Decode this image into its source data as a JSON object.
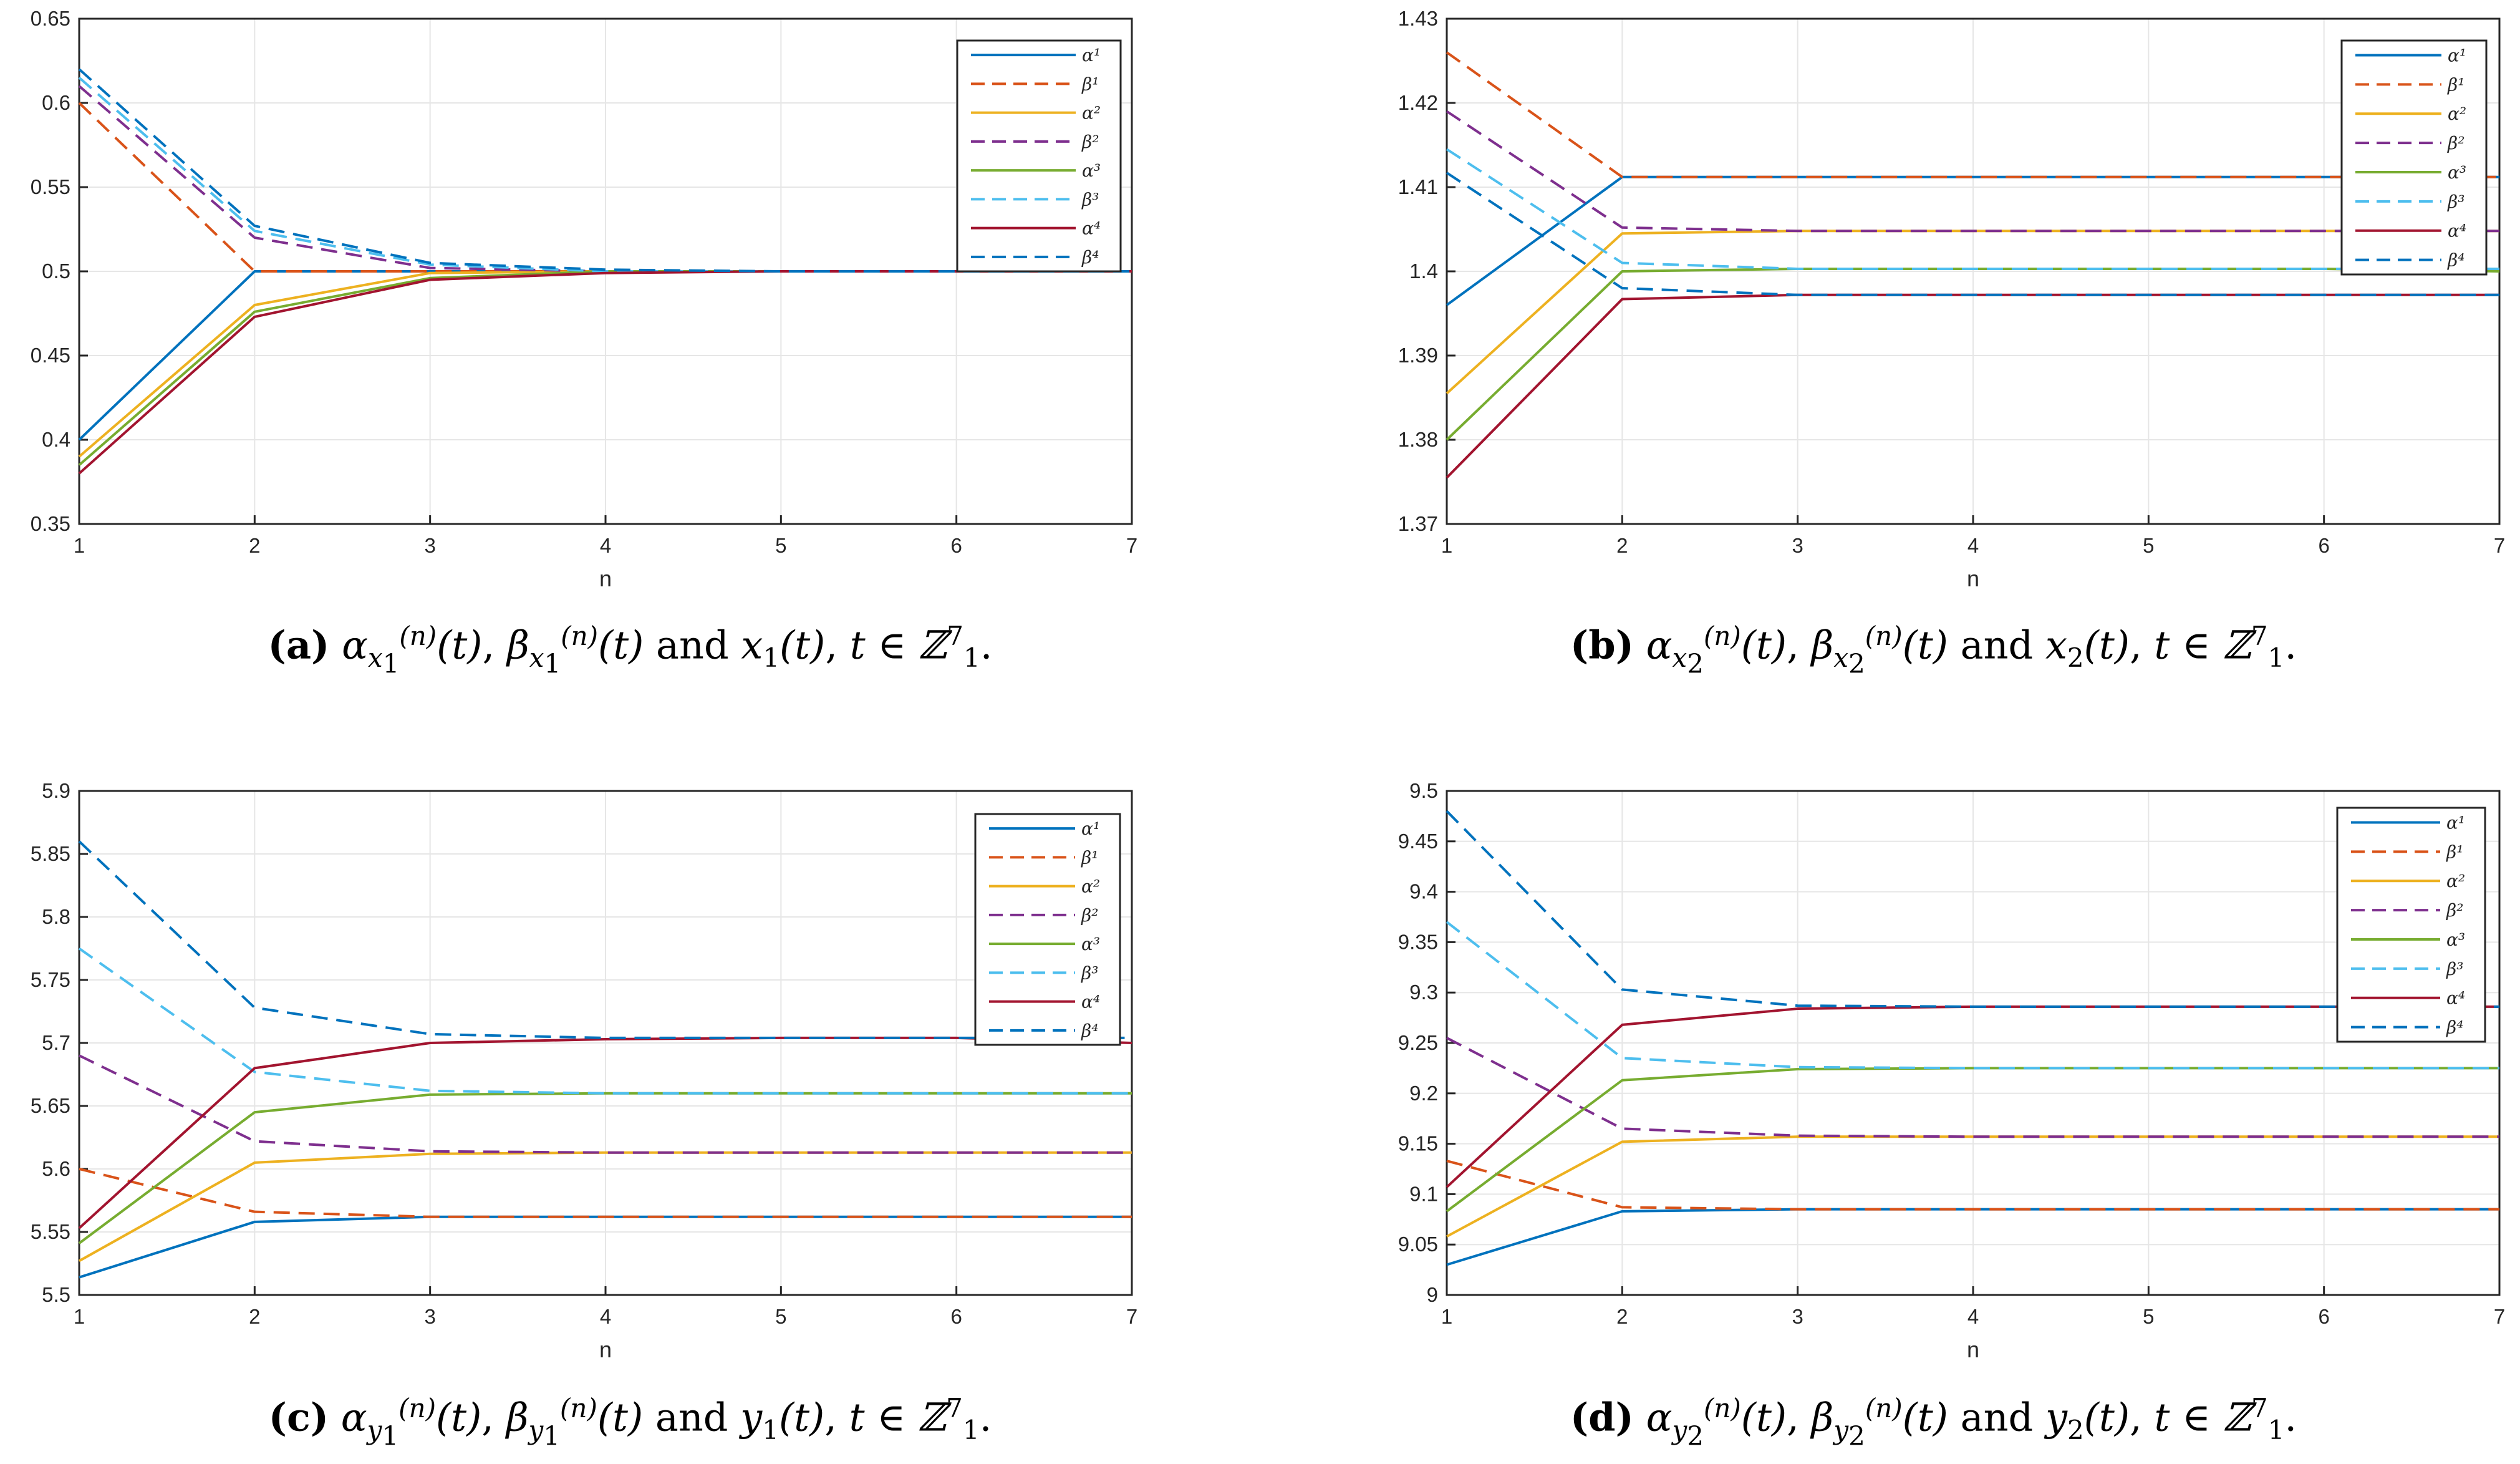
{
  "colors": {
    "c1": "#0072BD",
    "c2": "#D95319",
    "c3": "#EDB120",
    "c4": "#7E2F8E",
    "c5": "#77AC30",
    "c6": "#4DBEEE",
    "c7": "#A2142F",
    "c8": "#0072BD"
  },
  "legend_entries": [
    "α¹",
    "β¹",
    "α²",
    "β²",
    "α³",
    "β³",
    "α⁴",
    "β⁴"
  ],
  "chart_data": [
    {
      "id": "a",
      "type": "line",
      "xlabel": "n",
      "ylabel": "",
      "x": [
        1,
        2,
        3,
        4,
        5,
        6,
        7
      ],
      "xlim": [
        1,
        7
      ],
      "ylim": [
        0.35,
        0.65
      ],
      "yticks": [
        0.35,
        0.4,
        0.45,
        0.5,
        0.55,
        0.6,
        0.65
      ],
      "ytick_labels": [
        "0.35",
        "0.4",
        "0.45",
        "0.5",
        "0.55",
        "0.6",
        "0.65"
      ],
      "xtick_labels": [
        "1",
        "2",
        "3",
        "4",
        "5",
        "6",
        "7"
      ],
      "grid": true,
      "legend_position": "top-right",
      "series": [
        {
          "name": "α¹",
          "style": "solid",
          "values": [
            0.4,
            0.5,
            0.5,
            0.5,
            0.5,
            0.5,
            0.5
          ]
        },
        {
          "name": "β¹",
          "style": "dashed",
          "values": [
            0.6,
            0.5,
            0.5,
            0.5,
            0.5,
            0.5,
            0.5
          ]
        },
        {
          "name": "α²",
          "style": "solid",
          "values": [
            0.39,
            0.48,
            0.499,
            0.5,
            0.5,
            0.5,
            0.5
          ]
        },
        {
          "name": "β²",
          "style": "dashed",
          "values": [
            0.61,
            0.52,
            0.502,
            0.5,
            0.5,
            0.5,
            0.5
          ]
        },
        {
          "name": "α³",
          "style": "solid",
          "values": [
            0.385,
            0.476,
            0.496,
            0.5,
            0.5,
            0.5,
            0.5
          ]
        },
        {
          "name": "β³",
          "style": "dashed",
          "values": [
            0.615,
            0.524,
            0.504,
            0.5,
            0.5,
            0.5,
            0.5
          ]
        },
        {
          "name": "α⁴",
          "style": "solid",
          "values": [
            0.38,
            0.473,
            0.495,
            0.499,
            0.5,
            0.5,
            0.5
          ]
        },
        {
          "name": "β⁴",
          "style": "dashed",
          "values": [
            0.62,
            0.527,
            0.505,
            0.501,
            0.5,
            0.5,
            0.5
          ]
        }
      ]
    },
    {
      "id": "b",
      "type": "line",
      "xlabel": "n",
      "ylabel": "",
      "x": [
        1,
        2,
        3,
        4,
        5,
        6,
        7
      ],
      "xlim": [
        1,
        7
      ],
      "ylim": [
        1.37,
        1.43
      ],
      "yticks": [
        1.37,
        1.38,
        1.39,
        1.4,
        1.41,
        1.42,
        1.43
      ],
      "ytick_labels": [
        "1.37",
        "1.38",
        "1.39",
        "1.4",
        "1.41",
        "1.42",
        "1.43"
      ],
      "xtick_labels": [
        "1",
        "2",
        "3",
        "4",
        "5",
        "6",
        "7"
      ],
      "grid": true,
      "legend_position": "top-right",
      "series": [
        {
          "name": "α¹",
          "style": "solid",
          "values": [
            1.396,
            1.4112,
            1.4112,
            1.4112,
            1.4112,
            1.4112,
            1.4112
          ]
        },
        {
          "name": "β¹",
          "style": "dashed",
          "values": [
            1.426,
            1.4112,
            1.4112,
            1.4112,
            1.4112,
            1.4112,
            1.4112
          ]
        },
        {
          "name": "α²",
          "style": "solid",
          "values": [
            1.3855,
            1.4045,
            1.4048,
            1.4048,
            1.4048,
            1.4048,
            1.4048
          ]
        },
        {
          "name": "β²",
          "style": "dashed",
          "values": [
            1.419,
            1.4052,
            1.4048,
            1.4048,
            1.4048,
            1.4048,
            1.4048
          ]
        },
        {
          "name": "α³",
          "style": "solid",
          "values": [
            1.38,
            1.4,
            1.4003,
            1.4003,
            1.4003,
            1.4003,
            1.4
          ]
        },
        {
          "name": "β³",
          "style": "dashed",
          "values": [
            1.4145,
            1.401,
            1.4003,
            1.4003,
            1.4003,
            1.4003,
            1.4003
          ]
        },
        {
          "name": "α⁴",
          "style": "solid",
          "values": [
            1.3755,
            1.3967,
            1.3972,
            1.3972,
            1.3972,
            1.3972,
            1.3972
          ]
        },
        {
          "name": "β⁴",
          "style": "dashed",
          "values": [
            1.4117,
            1.398,
            1.3972,
            1.3972,
            1.3972,
            1.3972,
            1.3972
          ]
        }
      ]
    },
    {
      "id": "c",
      "type": "line",
      "xlabel": "n",
      "ylabel": "",
      "x": [
        1,
        2,
        3,
        4,
        5,
        6,
        7
      ],
      "xlim": [
        1,
        7
      ],
      "ylim": [
        5.5,
        5.9
      ],
      "yticks": [
        5.5,
        5.55,
        5.6,
        5.65,
        5.7,
        5.75,
        5.8,
        5.85,
        5.9
      ],
      "ytick_labels": [
        "5.5",
        "5.55",
        "5.6",
        "5.65",
        "5.7",
        "5.75",
        "5.8",
        "5.85",
        "5.9"
      ],
      "xtick_labels": [
        "1",
        "2",
        "3",
        "4",
        "5",
        "6",
        "7"
      ],
      "grid": true,
      "legend_position": "top-right",
      "series": [
        {
          "name": "α¹",
          "style": "solid",
          "values": [
            5.514,
            5.558,
            5.562,
            5.562,
            5.562,
            5.562,
            5.562
          ]
        },
        {
          "name": "β¹",
          "style": "dashed",
          "values": [
            5.6,
            5.566,
            5.562,
            5.562,
            5.562,
            5.562,
            5.562
          ]
        },
        {
          "name": "α²",
          "style": "solid",
          "values": [
            5.527,
            5.605,
            5.612,
            5.613,
            5.613,
            5.613,
            5.613
          ]
        },
        {
          "name": "β²",
          "style": "dashed",
          "values": [
            5.69,
            5.622,
            5.614,
            5.613,
            5.613,
            5.613,
            5.613
          ]
        },
        {
          "name": "α³",
          "style": "solid",
          "values": [
            5.541,
            5.645,
            5.659,
            5.66,
            5.66,
            5.66,
            5.66
          ]
        },
        {
          "name": "β³",
          "style": "dashed",
          "values": [
            5.775,
            5.677,
            5.662,
            5.66,
            5.66,
            5.66,
            5.66
          ]
        },
        {
          "name": "α⁴",
          "style": "solid",
          "values": [
            5.553,
            5.68,
            5.7,
            5.703,
            5.704,
            5.704,
            5.7
          ]
        },
        {
          "name": "β⁴",
          "style": "dashed",
          "values": [
            5.86,
            5.728,
            5.707,
            5.704,
            5.704,
            5.704,
            5.704
          ]
        }
      ]
    },
    {
      "id": "d",
      "type": "line",
      "xlabel": "n",
      "ylabel": "",
      "x": [
        1,
        2,
        3,
        4,
        5,
        6,
        7
      ],
      "xlim": [
        1,
        7
      ],
      "ylim": [
        9.0,
        9.5
      ],
      "yticks": [
        9.0,
        9.05,
        9.1,
        9.15,
        9.2,
        9.25,
        9.3,
        9.35,
        9.4,
        9.45,
        9.5
      ],
      "ytick_labels": [
        "9",
        "9.05",
        "9.1",
        "9.15",
        "9.2",
        "9.25",
        "9.3",
        "9.35",
        "9.4",
        "9.45",
        "9.5"
      ],
      "xtick_labels": [
        "1",
        "2",
        "3",
        "4",
        "5",
        "6",
        "7"
      ],
      "grid": true,
      "legend_position": "top-right",
      "series": [
        {
          "name": "α¹",
          "style": "solid",
          "values": [
            9.03,
            9.083,
            9.085,
            9.085,
            9.085,
            9.085,
            9.085
          ]
        },
        {
          "name": "β¹",
          "style": "dashed",
          "values": [
            9.133,
            9.087,
            9.085,
            9.085,
            9.085,
            9.085,
            9.085
          ]
        },
        {
          "name": "α²",
          "style": "solid",
          "values": [
            9.058,
            9.152,
            9.157,
            9.157,
            9.157,
            9.157,
            9.157
          ]
        },
        {
          "name": "β²",
          "style": "dashed",
          "values": [
            9.255,
            9.165,
            9.158,
            9.157,
            9.157,
            9.157,
            9.157
          ]
        },
        {
          "name": "α³",
          "style": "solid",
          "values": [
            9.083,
            9.213,
            9.224,
            9.225,
            9.225,
            9.225,
            9.225
          ]
        },
        {
          "name": "β³",
          "style": "dashed",
          "values": [
            9.37,
            9.235,
            9.226,
            9.225,
            9.225,
            9.225,
            9.225
          ]
        },
        {
          "name": "α⁴",
          "style": "solid",
          "values": [
            9.107,
            9.268,
            9.284,
            9.286,
            9.286,
            9.286,
            9.286
          ]
        },
        {
          "name": "β⁴",
          "style": "dashed",
          "values": [
            9.48,
            9.303,
            9.287,
            9.286,
            9.286,
            9.286,
            9.286
          ]
        }
      ]
    }
  ],
  "captions": [
    {
      "label": "(a)",
      "alpha": "α",
      "beta": "β",
      "n": "(n)",
      "sub": "x",
      "subsub": "1",
      "t": "(t)",
      "sep": ",",
      "and": "and",
      "fn": "x",
      "fnsub": "1",
      "tin": "t ∈ ℤ",
      "zsup": "7",
      "zsub": "1",
      "end": "."
    },
    {
      "label": "(b)",
      "alpha": "α",
      "beta": "β",
      "n": "(n)",
      "sub": "x",
      "subsub": "2",
      "t": "(t)",
      "sep": ",",
      "and": "and",
      "fn": "x",
      "fnsub": "2",
      "tin": "t ∈ ℤ",
      "zsup": "7",
      "zsub": "1",
      "end": "."
    },
    {
      "label": "(c)",
      "alpha": "α",
      "beta": "β",
      "n": "(n)",
      "sub": "y",
      "subsub": "1",
      "t": "(t)",
      "sep": ",",
      "and": "and",
      "fn": "y",
      "fnsub": "1",
      "tin": "t ∈ ℤ",
      "zsup": "7",
      "zsub": "1",
      "end": "."
    },
    {
      "label": "(d)",
      "alpha": "α",
      "beta": "β",
      "n": "(n)",
      "sub": "y",
      "subsub": "2",
      "t": "(t)",
      "sep": ",",
      "and": "and",
      "fn": "y",
      "fnsub": "2",
      "tin": "t ∈ ℤ",
      "zsup": "7",
      "zsub": "1",
      "end": "."
    }
  ]
}
